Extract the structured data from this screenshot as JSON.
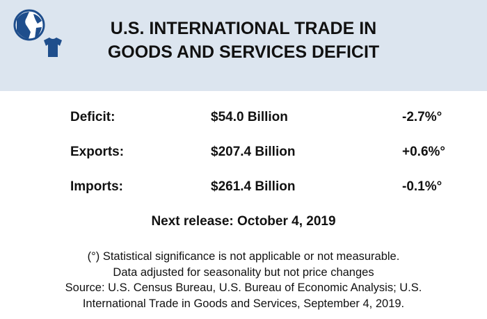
{
  "header": {
    "title_line1": "U.S. INTERNATIONAL TRADE IN",
    "title_line2": "GOODS AND SERVICES DEFICIT",
    "logo_icons": [
      "globe-icon",
      "tshirt-icon"
    ],
    "colors": {
      "background": "#dce5ef",
      "icon": "#1f4e8c"
    }
  },
  "rows": [
    {
      "label": "Deficit:",
      "amount": "$54.0 Billion",
      "change": "-2.7%°"
    },
    {
      "label": "Exports:",
      "amount": "$207.4 Billion",
      "change": "+0.6%°"
    },
    {
      "label": "Imports:",
      "amount": "$261.4 Billion",
      "change": "-0.1%°"
    }
  ],
  "next_release": "Next release: October 4, 2019",
  "footnotes": [
    "(°) Statistical significance is not applicable or not measurable.",
    "Data adjusted for seasonality but not price changes",
    "Source: U.S. Census Bureau, U.S. Bureau of Economic Analysis; U.S.",
    "International Trade in Goods and Services, September 4, 2019."
  ]
}
